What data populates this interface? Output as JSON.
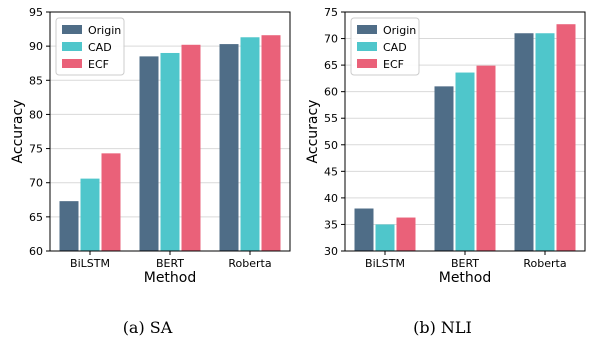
{
  "colors": {
    "Origin": "#4f6d87",
    "CAD": "#4fc6cb",
    "ECF": "#ea6179"
  },
  "chart_data": [
    {
      "type": "bar",
      "caption": "(a)  SA",
      "categories": [
        "BiLSTM",
        "BERT",
        "Roberta"
      ],
      "xlabel": "Method",
      "ylabel": "Accuracy",
      "ylim": [
        60,
        95
      ],
      "yticks": [
        60,
        65,
        70,
        75,
        80,
        85,
        90,
        95
      ],
      "grid": true,
      "legend": "top-left",
      "series": [
        {
          "name": "Origin",
          "values": [
            67.3,
            88.5,
            90.3
          ]
        },
        {
          "name": "CAD",
          "values": [
            70.6,
            89.0,
            91.3
          ]
        },
        {
          "name": "ECF",
          "values": [
            74.3,
            90.2,
            91.6
          ]
        }
      ]
    },
    {
      "type": "bar",
      "caption": "(b)  NLI",
      "categories": [
        "BiLSTM",
        "BERT",
        "Roberta"
      ],
      "xlabel": "Method",
      "ylabel": "Accuracy",
      "ylim": [
        30,
        75
      ],
      "yticks": [
        30,
        35,
        40,
        45,
        50,
        55,
        60,
        65,
        70,
        75
      ],
      "grid": true,
      "legend": "top-left",
      "series": [
        {
          "name": "Origin",
          "values": [
            38.0,
            61.0,
            71.0
          ]
        },
        {
          "name": "CAD",
          "values": [
            35.0,
            63.6,
            71.0
          ]
        },
        {
          "name": "ECF",
          "values": [
            36.3,
            64.9,
            72.7
          ]
        }
      ]
    }
  ]
}
